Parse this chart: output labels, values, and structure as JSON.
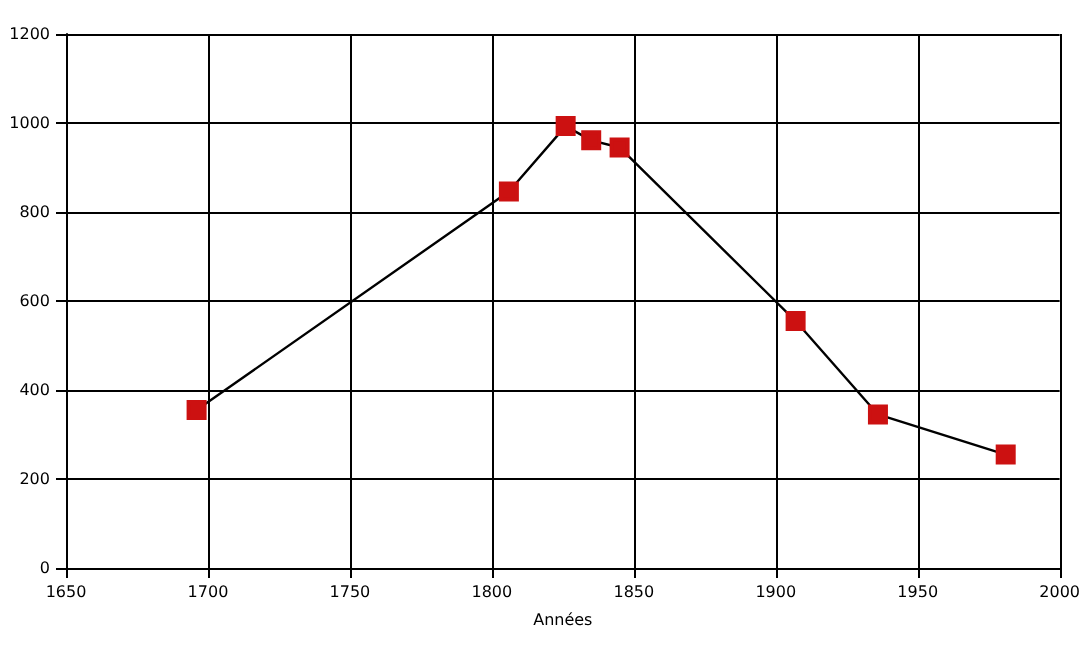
{
  "chart_data": {
    "type": "line",
    "xlabel": "Années",
    "x": [
      1696,
      1806,
      1826,
      1835,
      1845,
      1907,
      1936,
      1981
    ],
    "series": [
      {
        "color": "#cc1111",
        "values": [
          355,
          846,
          993,
          961,
          945,
          555,
          345,
          255
        ]
      }
    ],
    "xlim": [
      1650,
      2000
    ],
    "xticks": [
      1650,
      1700,
      1750,
      1800,
      1850,
      1900,
      1950,
      2000
    ],
    "ylim": [
      0,
      1200
    ],
    "yticks": [
      0,
      200,
      400,
      600,
      800,
      1000,
      1200
    ],
    "grid": true,
    "marker": "square",
    "line_style": "solid"
  }
}
